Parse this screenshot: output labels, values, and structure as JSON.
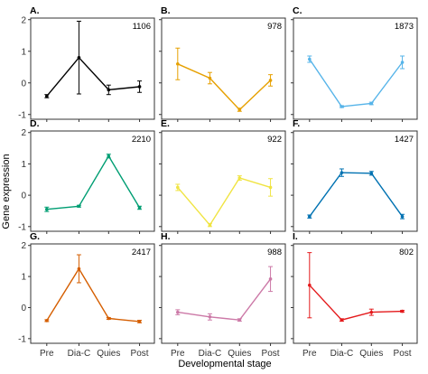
{
  "chart_data": {
    "type": "line",
    "xlabel": "Developmental stage",
    "ylabel": "Gene expression",
    "categories": [
      "Pre",
      "Dia-C",
      "Quies",
      "Post"
    ],
    "yticks": [
      -1,
      0,
      1,
      2
    ],
    "ylim": [
      -1.15,
      2.05
    ],
    "grid": false,
    "layout": {
      "rows": 3,
      "cols": 3
    },
    "panels": [
      {
        "label": "A.",
        "count": "1106",
        "color": "#000000",
        "values": [
          -0.42,
          0.8,
          -0.22,
          -0.12
        ],
        "errors": [
          0.05,
          1.15,
          0.15,
          0.18
        ]
      },
      {
        "label": "B.",
        "count": "978",
        "color": "#E6A000",
        "values": [
          0.6,
          0.15,
          -0.85,
          0.08
        ],
        "errors": [
          0.5,
          0.18,
          0.05,
          0.18
        ]
      },
      {
        "label": "C.",
        "count": "1873",
        "color": "#56B4E9",
        "values": [
          0.75,
          -0.75,
          -0.65,
          0.65
        ],
        "errors": [
          0.1,
          0.03,
          0.04,
          0.2
        ]
      },
      {
        "label": "D.",
        "count": "2210",
        "color": "#009E73",
        "values": [
          -0.45,
          -0.35,
          1.25,
          -0.4
        ],
        "errors": [
          0.07,
          0.03,
          0.06,
          0.05
        ]
      },
      {
        "label": "E.",
        "count": "922",
        "color": "#F0E442",
        "values": [
          0.25,
          -0.95,
          0.55,
          0.25
        ],
        "errors": [
          0.1,
          0.05,
          0.07,
          0.28
        ]
      },
      {
        "label": "F.",
        "count": "1427",
        "color": "#0072B2",
        "values": [
          -0.68,
          0.72,
          0.7,
          -0.68
        ],
        "errors": [
          0.05,
          0.12,
          0.06,
          0.07
        ]
      },
      {
        "label": "G.",
        "count": "2417",
        "color": "#D55E00",
        "values": [
          -0.42,
          1.25,
          -0.35,
          -0.45
        ],
        "errors": [
          0.03,
          0.45,
          0.03,
          0.04
        ]
      },
      {
        "label": "H.",
        "count": "988",
        "color": "#CC79A7",
        "values": [
          -0.15,
          -0.3,
          -0.4,
          0.92
        ],
        "errors": [
          0.08,
          0.1,
          0.04,
          0.4
        ]
      },
      {
        "label": "I.",
        "count": "802",
        "color": "#E41A1C",
        "values": [
          0.72,
          -0.4,
          -0.15,
          -0.12
        ],
        "errors": [
          1.05,
          0.04,
          0.1,
          0.03
        ]
      }
    ]
  }
}
